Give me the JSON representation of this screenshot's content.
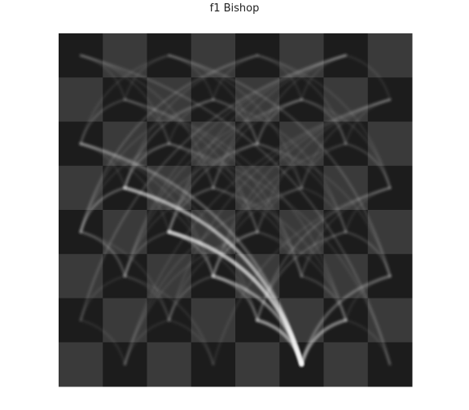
{
  "chart_data": {
    "type": "heatmap",
    "title": "f1 Bishop",
    "board": {
      "files": 8,
      "ranks": 8,
      "light_color": "#3a3a3a",
      "dark_color": "#1c1c1c",
      "show_labels": false
    },
    "piece_start": "f1",
    "trace_color": "#ffffff",
    "moves": [
      [
        "f1",
        "c4"
      ],
      [
        "f1",
        "c4"
      ],
      [
        "f1",
        "c4"
      ],
      [
        "f1",
        "c4"
      ],
      [
        "f1",
        "c4"
      ],
      [
        "f1",
        "c4"
      ],
      [
        "f1",
        "c4"
      ],
      [
        "f1",
        "c4"
      ],
      [
        "f1",
        "b5"
      ],
      [
        "f1",
        "b5"
      ],
      [
        "f1",
        "b5"
      ],
      [
        "f1",
        "b5"
      ],
      [
        "f1",
        "b5"
      ],
      [
        "f1",
        "b5"
      ],
      [
        "f1",
        "e2"
      ],
      [
        "f1",
        "e2"
      ],
      [
        "f1",
        "e2"
      ],
      [
        "f1",
        "e2"
      ],
      [
        "f1",
        "e2"
      ],
      [
        "f1",
        "d3"
      ],
      [
        "f1",
        "d3"
      ],
      [
        "f1",
        "d3"
      ],
      [
        "f1",
        "d3"
      ],
      [
        "f1",
        "g2"
      ],
      [
        "f1",
        "g2"
      ],
      [
        "f1",
        "g2"
      ],
      [
        "f1",
        "g2"
      ],
      [
        "f1",
        "h3"
      ],
      [
        "f1",
        "h3"
      ],
      [
        "f1",
        "a6"
      ],
      [
        "f1",
        "a6"
      ],
      [
        "e2",
        "d3"
      ],
      [
        "e2",
        "d3"
      ],
      [
        "e2",
        "d3"
      ],
      [
        "d3",
        "c2"
      ],
      [
        "d3",
        "c2"
      ],
      [
        "d3",
        "e4"
      ],
      [
        "d3",
        "e4"
      ],
      [
        "d3",
        "e4"
      ],
      [
        "c4",
        "d3"
      ],
      [
        "c4",
        "d3"
      ],
      [
        "c4",
        "d3"
      ],
      [
        "b5",
        "a4"
      ],
      [
        "b5",
        "a4"
      ],
      [
        "b5",
        "a4"
      ],
      [
        "a4",
        "b3"
      ],
      [
        "a4",
        "b3"
      ],
      [
        "c4",
        "b3"
      ],
      [
        "c4",
        "b3"
      ],
      [
        "c4",
        "d5"
      ],
      [
        "c4",
        "d5"
      ],
      [
        "c4",
        "e6"
      ],
      [
        "c4",
        "e6"
      ],
      [
        "b5",
        "c6"
      ],
      [
        "b5",
        "c6"
      ],
      [
        "b5",
        "d7"
      ],
      [
        "e2",
        "h5"
      ],
      [
        "e2",
        "h5"
      ],
      [
        "e2",
        "g4"
      ],
      [
        "e2",
        "g4"
      ],
      [
        "g2",
        "f3"
      ],
      [
        "g2",
        "f3"
      ],
      [
        "g2",
        "e4"
      ],
      [
        "g2",
        "d5"
      ],
      [
        "h3",
        "g4"
      ],
      [
        "h3",
        "e6"
      ],
      [
        "g2",
        "h3"
      ],
      [
        "g2",
        "h1"
      ],
      [
        "d3",
        "b5"
      ],
      [
        "d3",
        "f5"
      ],
      [
        "d3",
        "g6"
      ],
      [
        "d3",
        "a6"
      ],
      [
        "e4",
        "d5"
      ],
      [
        "e4",
        "c6"
      ],
      [
        "e4",
        "f5"
      ],
      [
        "e4",
        "b7"
      ],
      [
        "f3",
        "e4"
      ],
      [
        "f3",
        "c6"
      ],
      [
        "f3",
        "g4"
      ],
      [
        "f3",
        "d5"
      ],
      [
        "d5",
        "c6"
      ],
      [
        "d5",
        "e6"
      ],
      [
        "d5",
        "b3"
      ],
      [
        "d5",
        "f7"
      ],
      [
        "c6",
        "b7"
      ],
      [
        "c6",
        "d7"
      ],
      [
        "c6",
        "a8"
      ],
      [
        "c6",
        "b5"
      ],
      [
        "e6",
        "f7"
      ],
      [
        "e6",
        "d7"
      ],
      [
        "e6",
        "g8"
      ],
      [
        "e6",
        "c8"
      ],
      [
        "f5",
        "g6"
      ],
      [
        "f5",
        "e6"
      ],
      [
        "f5",
        "h7"
      ],
      [
        "f5",
        "c8"
      ],
      [
        "b3",
        "a2"
      ],
      [
        "b3",
        "c2"
      ],
      [
        "b3",
        "d1"
      ],
      [
        "b3",
        "a4"
      ],
      [
        "c2",
        "b1"
      ],
      [
        "c2",
        "d1"
      ],
      [
        "c2",
        "a4"
      ],
      [
        "c2",
        "e4"
      ],
      [
        "a6",
        "b7"
      ],
      [
        "a6",
        "c8"
      ],
      [
        "a6",
        "b5"
      ],
      [
        "g4",
        "h5"
      ],
      [
        "g4",
        "f5"
      ],
      [
        "g4",
        "e6"
      ],
      [
        "g4",
        "h3"
      ],
      [
        "h5",
        "g6"
      ],
      [
        "h5",
        "f7"
      ],
      [
        "h5",
        "e8"
      ],
      [
        "g6",
        "h7"
      ],
      [
        "g6",
        "f7"
      ],
      [
        "g6",
        "e8"
      ],
      [
        "g6",
        "h5"
      ],
      [
        "b7",
        "a8"
      ],
      [
        "b7",
        "c8"
      ],
      [
        "b7",
        "a6"
      ],
      [
        "d7",
        "e8"
      ],
      [
        "d7",
        "c8"
      ],
      [
        "d7",
        "e6"
      ],
      [
        "d7",
        "b5"
      ],
      [
        "f7",
        "g8"
      ],
      [
        "f7",
        "e8"
      ],
      [
        "f7",
        "e6"
      ],
      [
        "f7",
        "g6"
      ],
      [
        "a4",
        "b5"
      ],
      [
        "a4",
        "c6"
      ],
      [
        "a4",
        "d7"
      ],
      [
        "e6",
        "b3"
      ],
      [
        "d5",
        "a8"
      ],
      [
        "c4",
        "a6"
      ],
      [
        "c4",
        "f7"
      ],
      [
        "c4",
        "g8"
      ],
      [
        "b5",
        "e8"
      ],
      [
        "d3",
        "h7"
      ],
      [
        "e2",
        "a6"
      ],
      [
        "c4",
        "e2"
      ],
      [
        "e4",
        "h7"
      ],
      [
        "f3",
        "h5"
      ],
      [
        "g4",
        "d7"
      ],
      [
        "f5",
        "b1"
      ],
      [
        "h3",
        "c8"
      ],
      [
        "g2",
        "b7"
      ],
      [
        "e4",
        "b1"
      ],
      [
        "d5",
        "g8"
      ],
      [
        "a4",
        "e8"
      ],
      [
        "c6",
        "h1"
      ],
      [
        "b3",
        "g8"
      ],
      [
        "a2",
        "g8"
      ],
      [
        "c2",
        "h7"
      ],
      [
        "d1",
        "h5"
      ],
      [
        "b1",
        "h7"
      ],
      [
        "a2",
        "b1"
      ],
      [
        "h7",
        "g8"
      ],
      [
        "h1",
        "a8"
      ],
      [
        "a8",
        "h1"
      ],
      [
        "e8",
        "a4"
      ],
      [
        "g8",
        "a2"
      ],
      [
        "c8",
        "h3"
      ],
      [
        "f7",
        "b3"
      ],
      [
        "b7",
        "f3"
      ]
    ]
  }
}
